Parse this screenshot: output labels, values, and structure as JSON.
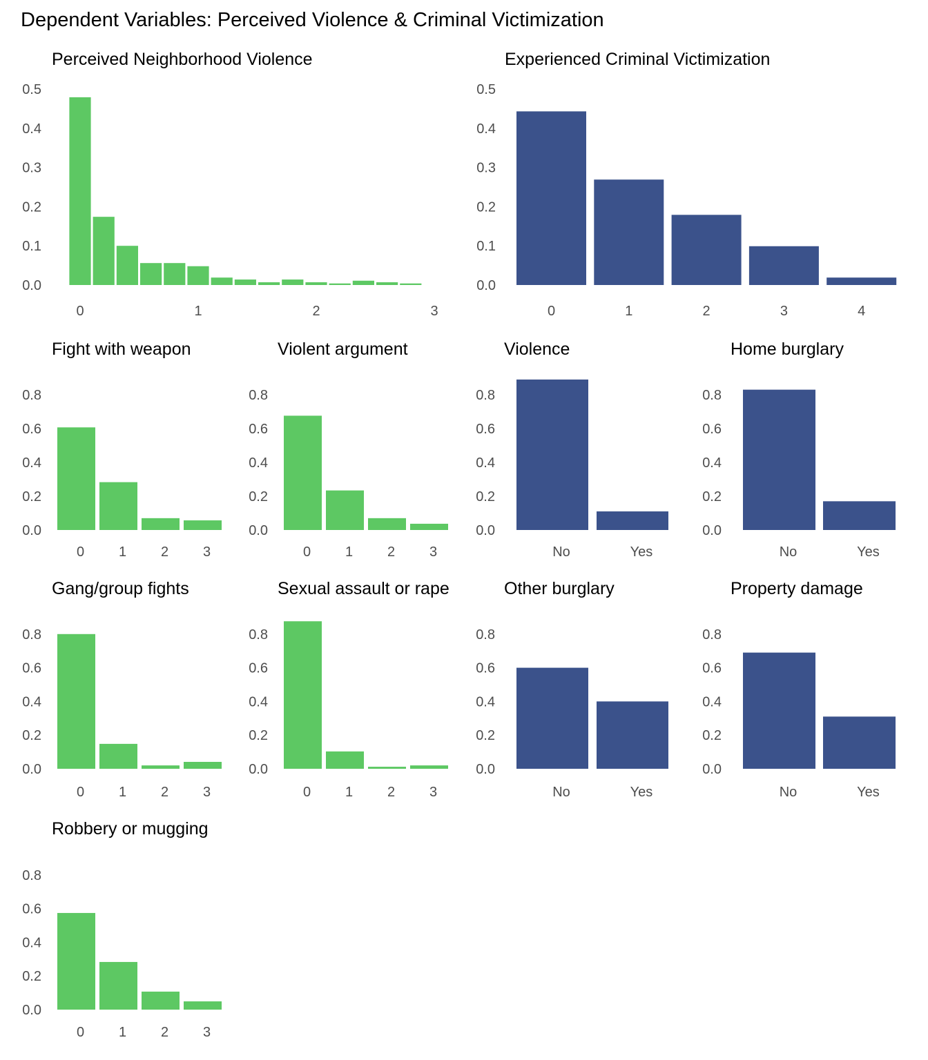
{
  "figure": {
    "title": "Dependent Variables: Perceived Violence & Criminal Victimization"
  },
  "colors": {
    "perceived": "#5dc863",
    "victimization": "#3b528b",
    "tick_text": "#4d4d4d",
    "title_text": "#000000"
  },
  "chart_data": [
    {
      "id": "perceived-neighborhood-violence",
      "type": "bar",
      "title": "Perceived Neighborhood Violence",
      "group": "perceived",
      "xlabel": "",
      "ylabel": "",
      "x_ticks": [
        "0",
        "1",
        "2",
        "3"
      ],
      "xlim": [
        0,
        3
      ],
      "bin_width": 0.2,
      "x": [
        0,
        0.2,
        0.4,
        0.6,
        0.8,
        1.0,
        1.2,
        1.4,
        1.6,
        1.8,
        2.0,
        2.2,
        2.4,
        2.6,
        2.8
      ],
      "values": [
        0.479,
        0.174,
        0.1,
        0.056,
        0.056,
        0.048,
        0.019,
        0.014,
        0.007,
        0.014,
        0.007,
        0.004,
        0.011,
        0.007,
        0.004
      ],
      "y_ticks": [
        "0.0",
        "0.1",
        "0.2",
        "0.3",
        "0.4",
        "0.5"
      ],
      "ylim": [
        0,
        0.5
      ],
      "grid": false
    },
    {
      "id": "experienced-criminal-victimization",
      "type": "bar",
      "title": "Experienced Criminal Victimization",
      "group": "victimization",
      "categories": [
        "0",
        "1",
        "2",
        "3",
        "4"
      ],
      "values": [
        0.443,
        0.269,
        0.179,
        0.099,
        0.019
      ],
      "y_ticks": [
        "0.0",
        "0.1",
        "0.2",
        "0.3",
        "0.4",
        "0.5"
      ],
      "ylim": [
        0,
        0.5
      ],
      "grid": false
    },
    {
      "id": "fight-with-weapon",
      "type": "bar",
      "title": "Fight with weapon",
      "group": "perceived",
      "categories": [
        "0",
        "1",
        "2",
        "3"
      ],
      "values": [
        0.607,
        0.283,
        0.07,
        0.057
      ],
      "y_ticks": [
        "0.0",
        "0.2",
        "0.4",
        "0.6",
        "0.8"
      ],
      "ylim": [
        0,
        0.9
      ],
      "grid": false
    },
    {
      "id": "violent-argument",
      "type": "bar",
      "title": "Violent argument",
      "group": "perceived",
      "categories": [
        "0",
        "1",
        "2",
        "3"
      ],
      "values": [
        0.676,
        0.234,
        0.07,
        0.037
      ],
      "y_ticks": [
        "0.0",
        "0.2",
        "0.4",
        "0.6",
        "0.8"
      ],
      "ylim": [
        0,
        0.9
      ],
      "grid": false
    },
    {
      "id": "violence",
      "type": "bar",
      "title": "Violence",
      "group": "victimization",
      "categories": [
        "No",
        "Yes"
      ],
      "values": [
        0.89,
        0.11
      ],
      "y_ticks": [
        "0.0",
        "0.2",
        "0.4",
        "0.6",
        "0.8"
      ],
      "ylim": [
        0,
        0.9
      ],
      "grid": false
    },
    {
      "id": "home-burglary",
      "type": "bar",
      "title": "Home burglary",
      "group": "victimization",
      "categories": [
        "No",
        "Yes"
      ],
      "values": [
        0.83,
        0.17
      ],
      "y_ticks": [
        "0.0",
        "0.2",
        "0.4",
        "0.6",
        "0.8"
      ],
      "ylim": [
        0,
        0.9
      ],
      "grid": false
    },
    {
      "id": "gang-group-fights",
      "type": "bar",
      "title": "Gang/group fights",
      "group": "perceived",
      "categories": [
        "0",
        "1",
        "2",
        "3"
      ],
      "values": [
        0.8,
        0.148,
        0.02,
        0.041
      ],
      "y_ticks": [
        "0.0",
        "0.2",
        "0.4",
        "0.6",
        "0.8"
      ],
      "ylim": [
        0,
        0.9
      ],
      "grid": false
    },
    {
      "id": "sexual-assault-or-rape",
      "type": "bar",
      "title": "Sexual assault or rape",
      "group": "perceived",
      "categories": [
        "0",
        "1",
        "2",
        "3"
      ],
      "values": [
        0.876,
        0.103,
        0.012,
        0.02
      ],
      "y_ticks": [
        "0.0",
        "0.2",
        "0.4",
        "0.6",
        "0.8"
      ],
      "ylim": [
        0,
        0.9
      ],
      "grid": false
    },
    {
      "id": "other-burglary",
      "type": "bar",
      "title": "Other burglary",
      "group": "victimization",
      "categories": [
        "No",
        "Yes"
      ],
      "values": [
        0.6,
        0.4
      ],
      "y_ticks": [
        "0.0",
        "0.2",
        "0.4",
        "0.6",
        "0.8"
      ],
      "ylim": [
        0,
        0.9
      ],
      "grid": false
    },
    {
      "id": "property-damage",
      "type": "bar",
      "title": "Property damage",
      "group": "victimization",
      "categories": [
        "No",
        "Yes"
      ],
      "values": [
        0.69,
        0.31
      ],
      "y_ticks": [
        "0.0",
        "0.2",
        "0.4",
        "0.6",
        "0.8"
      ],
      "ylim": [
        0,
        0.9
      ],
      "grid": false
    },
    {
      "id": "robbery-or-mugging",
      "type": "bar",
      "title": "Robbery or mugging",
      "group": "perceived",
      "categories": [
        "0",
        "1",
        "2",
        "3"
      ],
      "values": [
        0.574,
        0.283,
        0.107,
        0.049
      ],
      "y_ticks": [
        "0.0",
        "0.2",
        "0.4",
        "0.6",
        "0.8"
      ],
      "ylim": [
        0,
        0.9
      ],
      "grid": false
    }
  ]
}
